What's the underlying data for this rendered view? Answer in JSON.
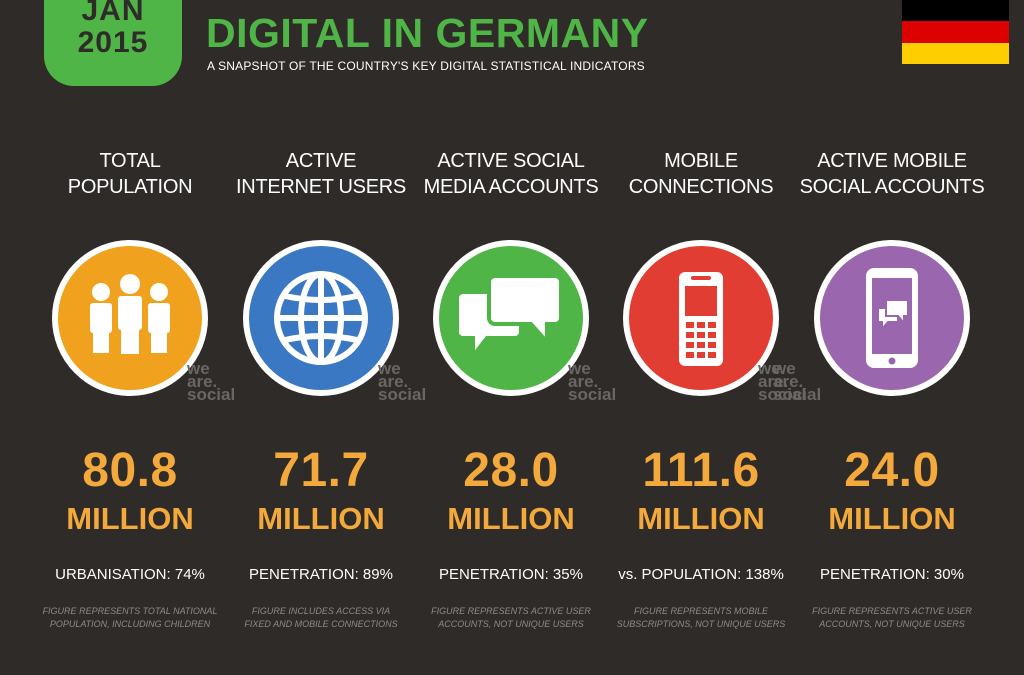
{
  "badge": {
    "month": "JAN",
    "year": "2015"
  },
  "title": "DIGITAL IN GERMANY",
  "subtitle": "A SNAPSHOT OF THE COUNTRY'S KEY DIGITAL STATISTICAL INDICATORS",
  "flag_colors": [
    "#000000",
    "#dd0000",
    "#ffce00"
  ],
  "watermark": {
    "line1": "we",
    "line2": "are.",
    "line3": "social"
  },
  "indicators": [
    {
      "label_line1": "TOTAL",
      "label_line2": "POPULATION",
      "icon": "people-icon",
      "color": "#f0a21f",
      "value": "80.8",
      "unit": "MILLION",
      "stat": "URBANISATION: 74%",
      "note_line1": "FIGURE REPRESENTS TOTAL NATIONAL",
      "note_line2": "POPULATION, INCLUDING CHILDREN"
    },
    {
      "label_line1": "ACTIVE",
      "label_line2": "INTERNET USERS",
      "icon": "globe-icon",
      "color": "#3a78c3",
      "value": "71.7",
      "unit": "MILLION",
      "stat": "PENETRATION: 89%",
      "note_line1": "FIGURE INCLUDES ACCESS VIA",
      "note_line2": "FIXED AND MOBILE CONNECTIONS"
    },
    {
      "label_line1": "ACTIVE SOCIAL",
      "label_line2": "MEDIA ACCOUNTS",
      "icon": "speech-bubbles-icon",
      "color": "#4fb547",
      "value": "28.0",
      "unit": "MILLION",
      "stat": "PENETRATION: 35%",
      "note_line1": "FIGURE REPRESENTS ACTIVE USER",
      "note_line2": "ACCOUNTS, NOT UNIQUE USERS"
    },
    {
      "label_line1": "MOBILE",
      "label_line2": "CONNECTIONS",
      "icon": "mobile-phone-icon",
      "color": "#e23d33",
      "value": "111.6",
      "unit": "MILLION",
      "stat": "vs. POPULATION: 138%",
      "note_line1": "FIGURE REPRESENTS MOBILE",
      "note_line2": "SUBSCRIPTIONS, NOT UNIQUE USERS"
    },
    {
      "label_line1": "ACTIVE MOBILE",
      "label_line2": "SOCIAL ACCOUNTS",
      "icon": "smartphone-social-icon",
      "color": "#9a66ad",
      "value": "24.0",
      "unit": "MILLION",
      "stat": "PENETRATION: 30%",
      "note_line1": "FIGURE REPRESENTS ACTIVE USER",
      "note_line2": "ACCOUNTS, NOT UNIQUE USERS"
    }
  ]
}
